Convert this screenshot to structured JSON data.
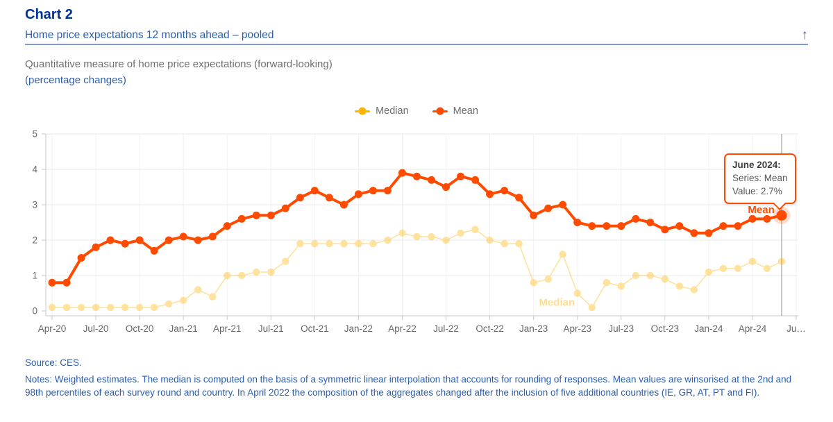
{
  "header": {
    "chart_label": "Chart 2",
    "title": "Home price expectations 12 months ahead – pooled",
    "description_line1": "Quantitative measure of home price expectations (forward-looking)",
    "description_line2": "(percentage changes)"
  },
  "icons": {
    "back_to_top_glyph": "↑"
  },
  "colors": {
    "mean": "#FF4B00",
    "median": "#FFB400",
    "title_blue": "#003299",
    "link_blue": "#2B5EAD",
    "divider_blue": "#7D9BD2",
    "text_gray": "#6D7073",
    "axis_text": "#666666",
    "gridline": "#E8E8E8",
    "axis_line": "#C9C9C9",
    "crosshair": "#8F8F8F"
  },
  "legend": {
    "items": [
      {
        "label": "Median",
        "color": "#FFB400"
      },
      {
        "label": "Mean",
        "color": "#FF4B00"
      }
    ]
  },
  "chart_data": {
    "type": "line",
    "title": "",
    "xlabel": "",
    "ylabel": "",
    "ylim": [
      0,
      5
    ],
    "y_ticks": [
      0,
      1,
      2,
      3,
      4,
      5
    ],
    "grid": true,
    "legend_position": "top-center",
    "x": [
      "Apr-20",
      "May-20",
      "Jun-20",
      "Jul-20",
      "Aug-20",
      "Sep-20",
      "Oct-20",
      "Nov-20",
      "Dec-20",
      "Jan-21",
      "Feb-21",
      "Mar-21",
      "Apr-21",
      "May-21",
      "Jun-21",
      "Jul-21",
      "Aug-21",
      "Sep-21",
      "Oct-21",
      "Nov-21",
      "Dec-21",
      "Jan-22",
      "Feb-22",
      "Mar-22",
      "Apr-22",
      "May-22",
      "Jun-22",
      "Jul-22",
      "Aug-22",
      "Sep-22",
      "Oct-22",
      "Nov-22",
      "Dec-22",
      "Jan-23",
      "Feb-23",
      "Mar-23",
      "Apr-23",
      "May-23",
      "Jun-23",
      "Jul-23",
      "Aug-23",
      "Sep-23",
      "Oct-23",
      "Nov-23",
      "Dec-23",
      "Jan-24",
      "Feb-24",
      "Mar-24",
      "Apr-24",
      "May-24",
      "Jun-24"
    ],
    "x_tick_labels": [
      "Apr-20",
      "Jul-20",
      "Oct-20",
      "Jan-21",
      "Apr-21",
      "Jul-21",
      "Oct-21",
      "Jan-22",
      "Apr-22",
      "Jul-22",
      "Oct-22",
      "Jan-23",
      "Apr-23",
      "Jul-23",
      "Oct-23",
      "Jan-24",
      "Apr-24",
      "Ju…"
    ],
    "series": [
      {
        "name": "Median",
        "color": "#FFB400",
        "dimmed": true,
        "values": [
          0.1,
          0.1,
          0.1,
          0.1,
          0.1,
          0.1,
          0.1,
          0.1,
          0.2,
          0.3,
          0.6,
          0.4,
          1.0,
          1.0,
          1.1,
          1.1,
          1.4,
          1.9,
          1.9,
          1.9,
          1.9,
          1.9,
          1.9,
          2.0,
          2.2,
          2.1,
          2.1,
          2.0,
          2.2,
          2.3,
          2.0,
          1.9,
          1.9,
          0.8,
          0.9,
          1.6,
          0.5,
          0.1,
          0.8,
          0.7,
          1.0,
          1.0,
          0.9,
          0.7,
          0.6,
          1.1,
          1.2,
          1.2,
          1.4,
          1.2,
          1.4
        ]
      },
      {
        "name": "Mean",
        "color": "#FF4B00",
        "dimmed": false,
        "values": [
          0.8,
          0.8,
          1.5,
          1.8,
          2.0,
          1.9,
          2.0,
          1.7,
          2.0,
          2.1,
          2.0,
          2.1,
          2.4,
          2.6,
          2.7,
          2.7,
          2.9,
          3.2,
          3.4,
          3.2,
          3.0,
          3.3,
          3.4,
          3.4,
          3.9,
          3.8,
          3.7,
          3.5,
          3.8,
          3.7,
          3.3,
          3.4,
          3.2,
          2.7,
          2.9,
          3.0,
          2.5,
          2.4,
          2.4,
          2.4,
          2.6,
          2.5,
          2.3,
          2.4,
          2.2,
          2.2,
          2.4,
          2.4,
          2.6,
          2.6,
          2.7
        ]
      }
    ],
    "series_labels": [
      {
        "text": "Median",
        "x_index": 34.6,
        "value": 0.25,
        "color": "#FFB400",
        "opacity": 0.45,
        "outlined": false
      },
      {
        "text": "Mean",
        "x_index": 48.6,
        "value": 2.86,
        "color": "#FF4B00",
        "opacity": 1,
        "outlined": true
      }
    ],
    "highlight": {
      "month": "June 2024",
      "series": "Mean",
      "value": 2.7,
      "x_index": 50,
      "crosshair": true
    }
  },
  "tooltip": {
    "title": "June 2024:",
    "series": "Series: Mean",
    "value": "Value: 2.7%"
  },
  "footer": {
    "source": "Source: CES.",
    "notes": "Notes: Weighted estimates. The median is computed on the basis of a symmetric linear interpolation that accounts for rounding of responses. Mean values are winsorised at the 2nd and 98th percentiles of each survey round and country. In April 2022 the composition of the aggregates changed after the inclusion of five additional countries (IE, GR, AT, PT and FI)."
  }
}
